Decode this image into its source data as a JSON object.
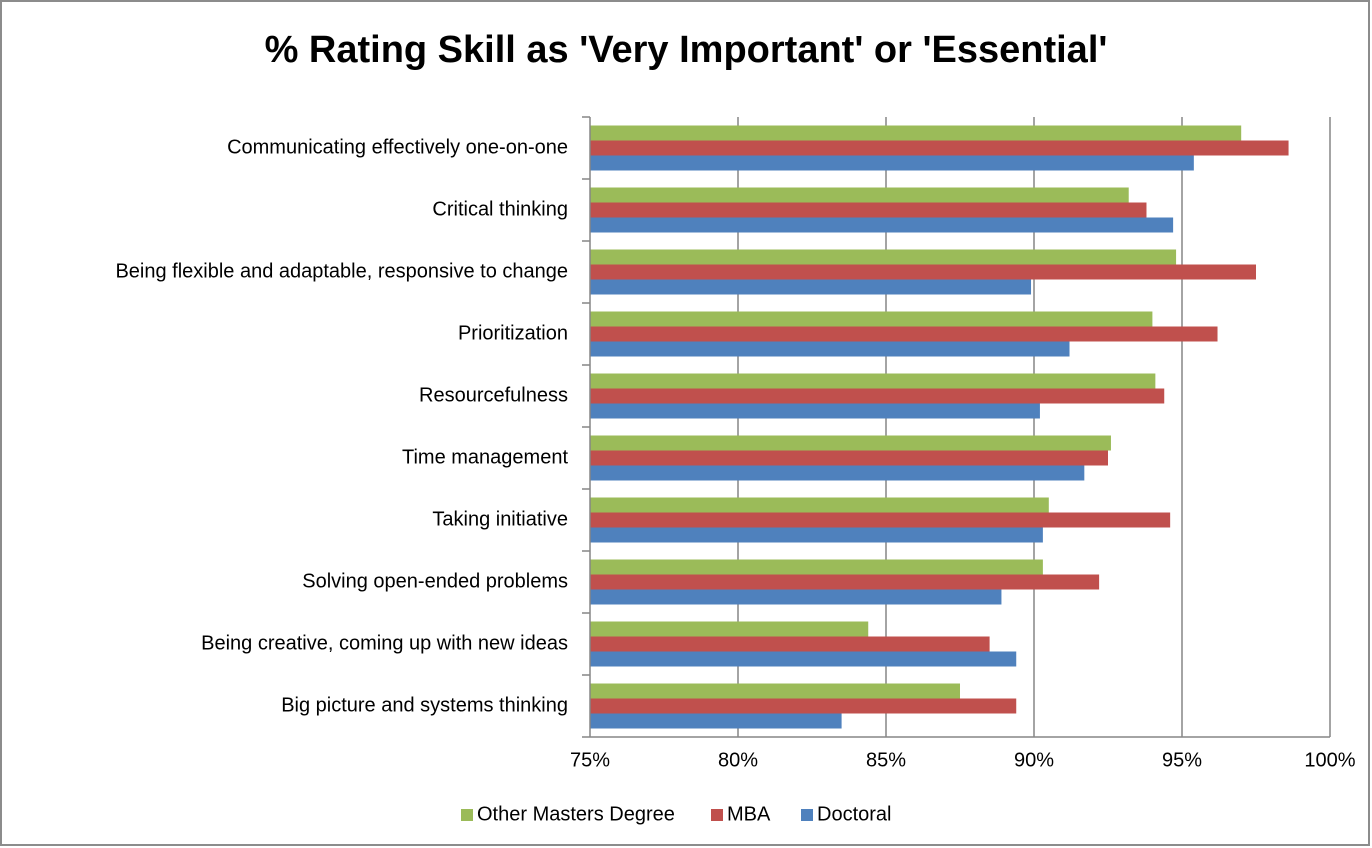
{
  "chart_data": {
    "type": "barh",
    "title": "% Rating Skill as 'Very Important' or 'Essential'",
    "categories": [
      "Communicating effectively one-on-one",
      "Critical thinking",
      "Being flexible and adaptable, responsive to change",
      "Prioritization",
      "Resourcefulness",
      "Time management",
      "Taking initiative",
      "Solving open-ended problems",
      "Being creative, coming up with new ideas",
      "Big picture and systems thinking"
    ],
    "series": [
      {
        "name": "Other Masters Degree",
        "color": "#9bbb59",
        "values": [
          97.0,
          93.2,
          94.8,
          94.0,
          94.1,
          92.6,
          90.5,
          90.3,
          84.4,
          87.5
        ]
      },
      {
        "name": "MBA",
        "color": "#c0504d",
        "values": [
          98.6,
          93.8,
          97.5,
          96.2,
          94.4,
          92.5,
          94.6,
          92.2,
          88.5,
          89.4
        ]
      },
      {
        "name": "Doctoral",
        "color": "#4f81bd",
        "values": [
          95.4,
          94.7,
          89.9,
          91.2,
          90.2,
          91.7,
          90.3,
          88.9,
          89.4,
          83.5
        ]
      }
    ],
    "xlim": [
      75,
      100
    ],
    "xticks": [
      {
        "value": 75,
        "label": "75%"
      },
      {
        "value": 80,
        "label": "80%"
      },
      {
        "value": 85,
        "label": "85%"
      },
      {
        "value": 90,
        "label": "90%"
      },
      {
        "value": 95,
        "label": "95%"
      },
      {
        "value": 100,
        "label": "100%"
      }
    ],
    "grid": true,
    "legend": "bottom"
  }
}
